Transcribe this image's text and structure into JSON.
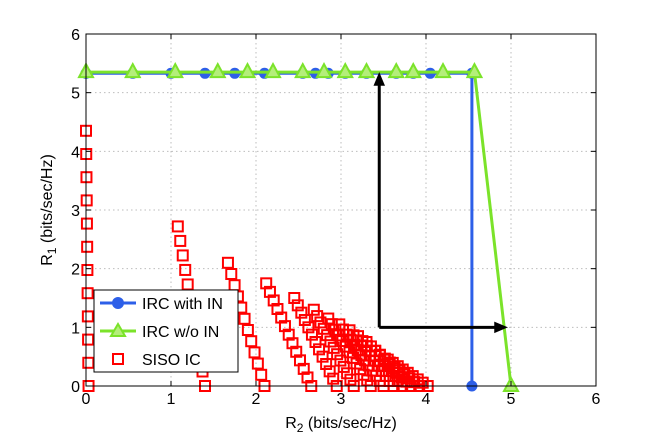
{
  "chart_data": {
    "type": "line",
    "xlim": [
      0,
      6
    ],
    "ylim": [
      0,
      6
    ],
    "xticks": [
      "0",
      "1",
      "2",
      "3",
      "4",
      "5",
      "6"
    ],
    "yticks": [
      "0",
      "1",
      "2",
      "3",
      "4",
      "5",
      "6"
    ],
    "xlabel": {
      "main": "R",
      "sub": "2",
      "units": " (bits/sec/Hz)"
    },
    "ylabel": {
      "main": "R",
      "sub": "1",
      "units": " (bits/sec/Hz)"
    },
    "grid": true,
    "legend_position": "bottom-left",
    "colors": {
      "irc_with_in": "#2d5fe8",
      "irc_wo_in": "#7be32a",
      "siso_ic": "#ff0000",
      "arrow": "#000000"
    },
    "series": [
      {
        "name": "IRC with IN",
        "marker": "circle",
        "line": [
          [
            0,
            5.33
          ],
          [
            4.54,
            5.33
          ],
          [
            4.54,
            0
          ]
        ],
        "markers": [
          [
            0,
            5.33
          ],
          [
            0.55,
            5.33
          ],
          [
            1.0,
            5.33
          ],
          [
            1.4,
            5.33
          ],
          [
            1.75,
            5.33
          ],
          [
            2.1,
            5.33
          ],
          [
            2.55,
            5.33
          ],
          [
            2.7,
            5.33
          ],
          [
            2.85,
            5.33
          ],
          [
            3.05,
            5.33
          ],
          [
            3.3,
            5.33
          ],
          [
            3.65,
            5.33
          ],
          [
            3.85,
            5.33
          ],
          [
            4.05,
            5.33
          ],
          [
            4.54,
            5.33
          ],
          [
            4.54,
            0
          ]
        ]
      },
      {
        "name": "IRC w/o IN",
        "marker": "triangle",
        "line": [
          [
            0,
            5.35
          ],
          [
            4.57,
            5.35
          ],
          [
            5.0,
            0
          ]
        ],
        "markers": [
          [
            0,
            5.35
          ],
          [
            0.55,
            5.35
          ],
          [
            1.05,
            5.35
          ],
          [
            1.55,
            5.35
          ],
          [
            1.9,
            5.35
          ],
          [
            2.2,
            5.35
          ],
          [
            2.55,
            5.35
          ],
          [
            2.8,
            5.35
          ],
          [
            3.05,
            5.35
          ],
          [
            3.3,
            5.35
          ],
          [
            3.65,
            5.35
          ],
          [
            3.85,
            5.35
          ],
          [
            4.2,
            5.35
          ],
          [
            4.57,
            5.35
          ],
          [
            5.0,
            0
          ]
        ]
      },
      {
        "name": "SISO IC",
        "marker": "square",
        "groups": [
          {
            "x0": 0.0,
            "x1": 0.03,
            "y0": 4.35,
            "y1": 0.0,
            "n": 12
          },
          {
            "x0": 1.08,
            "x1": 1.4,
            "y0": 2.72,
            "y1": 0.0,
            "n": 12
          },
          {
            "x0": 1.67,
            "x1": 2.1,
            "y0": 2.1,
            "y1": 0.0,
            "n": 12
          },
          {
            "x0": 2.12,
            "x1": 2.65,
            "y0": 1.75,
            "y1": 0.0,
            "n": 13
          },
          {
            "x0": 2.45,
            "x1": 2.95,
            "y0": 1.5,
            "y1": 0.0,
            "n": 13
          },
          {
            "x0": 2.68,
            "x1": 3.15,
            "y0": 1.3,
            "y1": 0.0,
            "n": 13
          },
          {
            "x0": 2.85,
            "x1": 3.35,
            "y0": 1.15,
            "y1": 0.0,
            "n": 13
          },
          {
            "x0": 2.98,
            "x1": 3.5,
            "y0": 1.05,
            "y1": 0.0,
            "n": 13
          },
          {
            "x0": 3.1,
            "x1": 3.62,
            "y0": 0.95,
            "y1": 0.0,
            "n": 12
          },
          {
            "x0": 3.2,
            "x1": 3.72,
            "y0": 0.85,
            "y1": 0.0,
            "n": 11
          },
          {
            "x0": 3.3,
            "x1": 3.82,
            "y0": 0.75,
            "y1": 0.0,
            "n": 11
          },
          {
            "x0": 3.4,
            "x1": 3.92,
            "y0": 0.6,
            "y1": 0.0,
            "n": 10
          },
          {
            "x0": 3.55,
            "x1": 4.02,
            "y0": 0.45,
            "y1": 0.0,
            "n": 9
          }
        ]
      }
    ],
    "annotations": [
      {
        "type": "arrow",
        "from": [
          3.45,
          1.0
        ],
        "to": [
          3.45,
          5.33
        ]
      },
      {
        "type": "arrow",
        "from": [
          3.45,
          1.0
        ],
        "to": [
          4.95,
          1.0
        ]
      }
    ]
  }
}
